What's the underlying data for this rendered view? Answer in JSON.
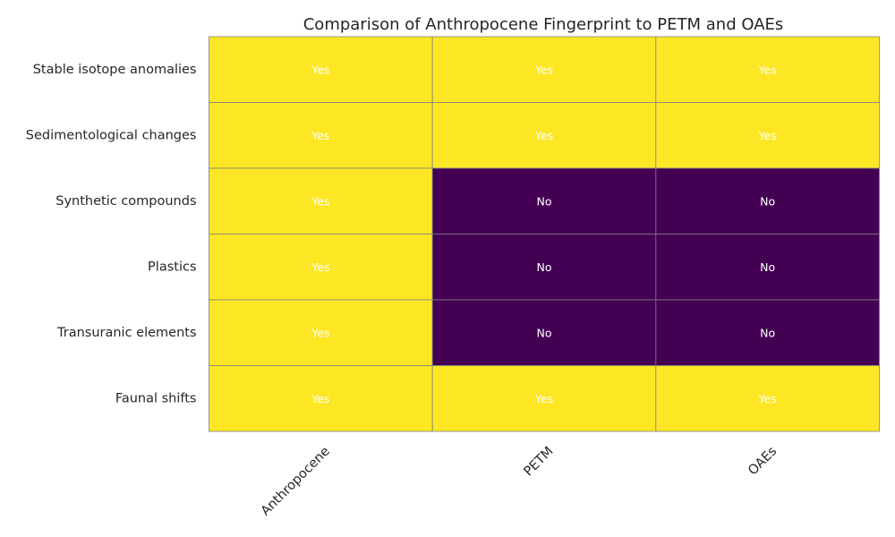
{
  "chart_data": {
    "type": "heatmap",
    "title": "Comparison of Anthropocene Fingerprint to PETM and OAEs",
    "rows": [
      "Stable isotope anomalies",
      "Sedimentological changes",
      "Synthetic compounds",
      "Plastics",
      "Transuranic elements",
      "Faunal shifts"
    ],
    "columns": [
      "Anthropocene",
      "PETM",
      "OAEs"
    ],
    "values": [
      [
        1,
        1,
        1
      ],
      [
        1,
        1,
        1
      ],
      [
        1,
        0,
        0
      ],
      [
        1,
        0,
        0
      ],
      [
        1,
        0,
        0
      ],
      [
        1,
        1,
        1
      ]
    ],
    "annotations": [
      [
        "Yes",
        "Yes",
        "Yes"
      ],
      [
        "Yes",
        "Yes",
        "Yes"
      ],
      [
        "Yes",
        "No",
        "No"
      ],
      [
        "Yes",
        "No",
        "No"
      ],
      [
        "Yes",
        "No",
        "No"
      ],
      [
        "Yes",
        "Yes",
        "Yes"
      ]
    ],
    "colormap": "viridis",
    "colors": {
      "yes": "#fde725",
      "no": "#440154",
      "gridline": "#808080"
    },
    "colorbar": false
  }
}
